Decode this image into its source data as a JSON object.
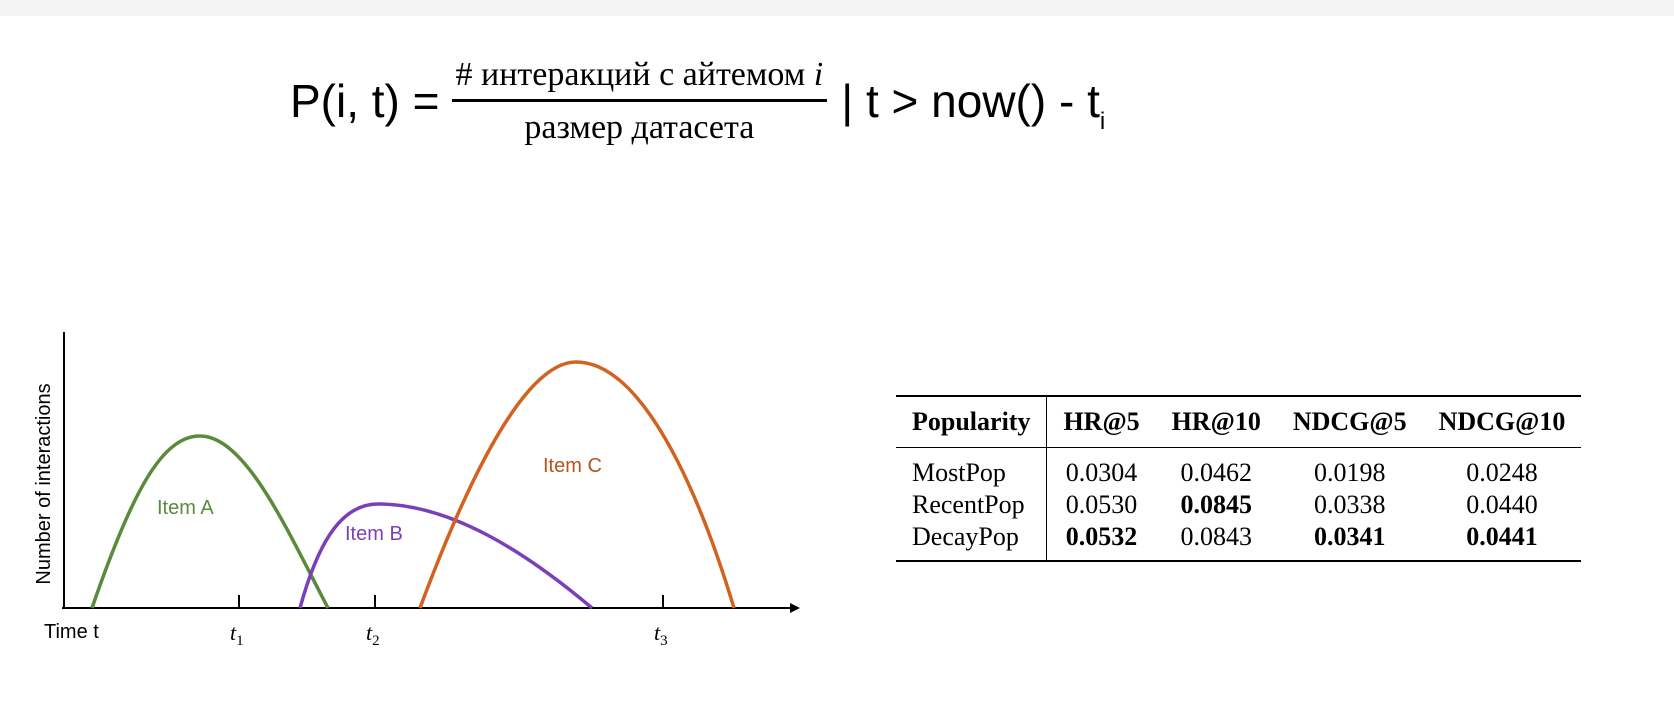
{
  "formula": {
    "lhs": "P(i, t) =",
    "numerator_text": "# интеракций с айтемом ",
    "numerator_var": "i",
    "denominator": "размер датасета",
    "condition": "| t > now() - t",
    "condition_sub": "i"
  },
  "chart_data": {
    "type": "line",
    "xlabel": "Time t",
    "ylabel": "Number of interactions",
    "x_ticks": [
      {
        "label": "t",
        "sub": "1"
      },
      {
        "label": "t",
        "sub": "2"
      },
      {
        "label": "t",
        "sub": "3"
      }
    ],
    "series": [
      {
        "name": "Item A",
        "color": "#5a8a3c"
      },
      {
        "name": "Item B",
        "color": "#7b3fb8"
      },
      {
        "name": "Item C",
        "color": "#d0631f"
      }
    ]
  },
  "table": {
    "headers": [
      "Popularity",
      "HR@5",
      "HR@10",
      "NDCG@5",
      "NDCG@10"
    ],
    "rows": [
      {
        "name": "MostPop",
        "values": [
          "0.0304",
          "0.0462",
          "0.0198",
          "0.0248"
        ],
        "bold": [
          false,
          false,
          false,
          false
        ]
      },
      {
        "name": "RecentPop",
        "values": [
          "0.0530",
          "0.0845",
          "0.0338",
          "0.0440"
        ],
        "bold": [
          false,
          true,
          false,
          false
        ]
      },
      {
        "name": "DecayPop",
        "values": [
          "0.0532",
          "0.0843",
          "0.0341",
          "0.0441"
        ],
        "bold": [
          true,
          false,
          true,
          true
        ]
      }
    ]
  }
}
